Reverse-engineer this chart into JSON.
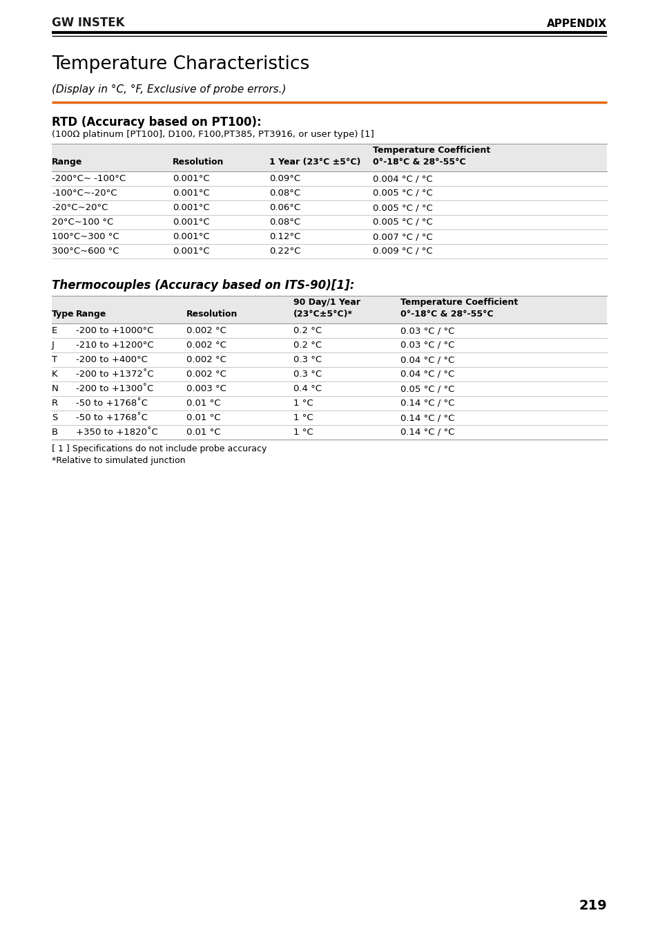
{
  "page_bg": "#ffffff",
  "header_logo": "GW INSTEK",
  "header_right": "APPENDIX",
  "page_number": "219",
  "title": "Temperature Characteristics",
  "subtitle": "(Display in °C, °F, Exclusive of probe errors.)",
  "orange_line_color": "#e8650a",
  "section1_title": "RTD (Accuracy based on PT100):",
  "section1_subtitle": "(100Ω platinum [PT100], D100, F100,PT385, PT3916, or user type) [1]",
  "rtd_data": [
    [
      "-200°C~ -100°C",
      "0.001°C",
      "0.09°C",
      "0.004 °C / °C"
    ],
    [
      "-100°C~-20°C",
      "0.001°C",
      "0.08°C",
      "0.005 °C / °C"
    ],
    [
      "-20°C~20°C",
      "0.001°C",
      "0.06°C",
      "0.005 °C / °C"
    ],
    [
      "20°C~100 °C",
      "0.001°C",
      "0.08°C",
      "0.005 °C / °C"
    ],
    [
      "100°C~300 °C",
      "0.001°C",
      "0.12°C",
      "0.007 °C / °C"
    ],
    [
      "300°C~600 °C",
      "0.001°C",
      "0.22°C",
      "0.009 °C / °C"
    ]
  ],
  "section2_title": "Thermocouples (Accuracy based on ITS-90)[1]:",
  "tc_data": [
    [
      "E",
      "-200 to +1000°C",
      "0.002 °C",
      "0.2 °C",
      "0.03 °C / °C"
    ],
    [
      "J",
      "-210 to +1200°C",
      "0.002 °C",
      "0.2 °C",
      "0.03 °C / °C"
    ],
    [
      "T",
      "-200 to +400°C",
      "0.002 °C",
      "0.3 °C",
      "0.04 °C / °C"
    ],
    [
      "K",
      "-200 to +1372˚C",
      "0.002 °C",
      "0.3 °C",
      "0.04 °C / °C"
    ],
    [
      "N",
      "-200 to +1300˚C",
      "0.003 °C",
      "0.4 °C",
      "0.05 °C / °C"
    ],
    [
      "R",
      "-50 to +1768˚C",
      "0.01 °C",
      "1 °C",
      "0.14 °C / °C"
    ],
    [
      "S",
      "-50 to +1768˚C",
      "0.01 °C",
      "1 °C",
      "0.14 °C / °C"
    ],
    [
      "B",
      "+350 to +1820˚C",
      "0.01 °C",
      "1 °C",
      "0.14 °C / °C"
    ]
  ],
  "footnote1": "[ 1 ] Specifications do not include probe accuracy",
  "footnote2": "*Relative to simulated junction",
  "table_header_bg": "#e8e8e8",
  "table_line_color": "#bbbbbb",
  "lmargin": 75,
  "rmargin": 879
}
